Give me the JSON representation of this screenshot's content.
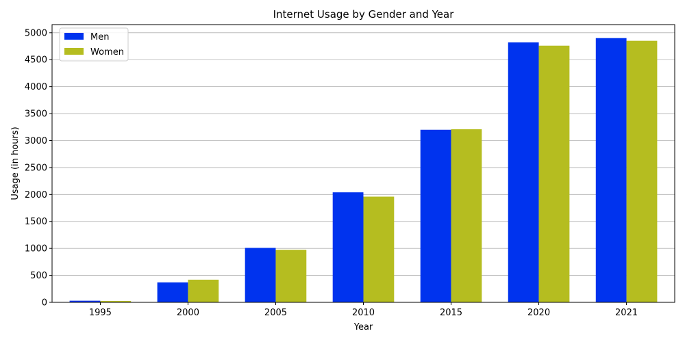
{
  "chart_data": {
    "type": "bar",
    "title": "Internet Usage by Gender and Year",
    "xlabel": "Year",
    "ylabel": "Usage (in hours)",
    "categories": [
      "1995",
      "2000",
      "2005",
      "2010",
      "2015",
      "2020",
      "2021"
    ],
    "series": [
      {
        "name": "Men",
        "color": "#0033ee",
        "values": [
          30,
          370,
          1010,
          2040,
          3200,
          4820,
          4900
        ]
      },
      {
        "name": "Women",
        "color": "#b5bd20",
        "values": [
          25,
          420,
          975,
          1960,
          3210,
          4760,
          4850
        ]
      }
    ],
    "ylim": [
      0,
      5150
    ],
    "yticks": [
      0,
      500,
      1000,
      1500,
      2000,
      2500,
      3000,
      3500,
      4000,
      4500,
      5000
    ],
    "grid": "y",
    "legend": "top-left"
  }
}
